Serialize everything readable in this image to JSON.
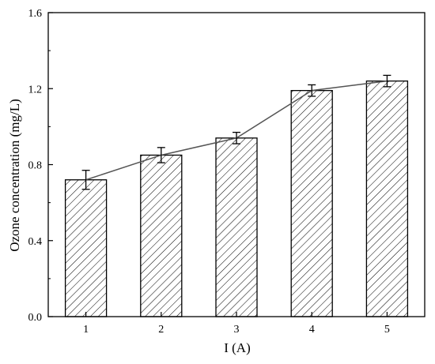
{
  "chart_data": {
    "type": "bar",
    "overlay": "line",
    "xlabel": "I (A)",
    "ylabel": "Ozone concentration (mg/L)",
    "categories": [
      "1",
      "2",
      "3",
      "4",
      "5"
    ],
    "values": [
      0.72,
      0.85,
      0.94,
      1.19,
      1.24
    ],
    "errors": [
      0.05,
      0.04,
      0.03,
      0.03,
      0.03
    ],
    "ylim": [
      0.0,
      1.6
    ],
    "yticks": [
      "0.0",
      "0.4",
      "0.8",
      "1.2",
      "1.6"
    ],
    "bar_fill": "hatched",
    "grid": false,
    "line_color": "#555555",
    "bar_edge_color": "#000000"
  }
}
